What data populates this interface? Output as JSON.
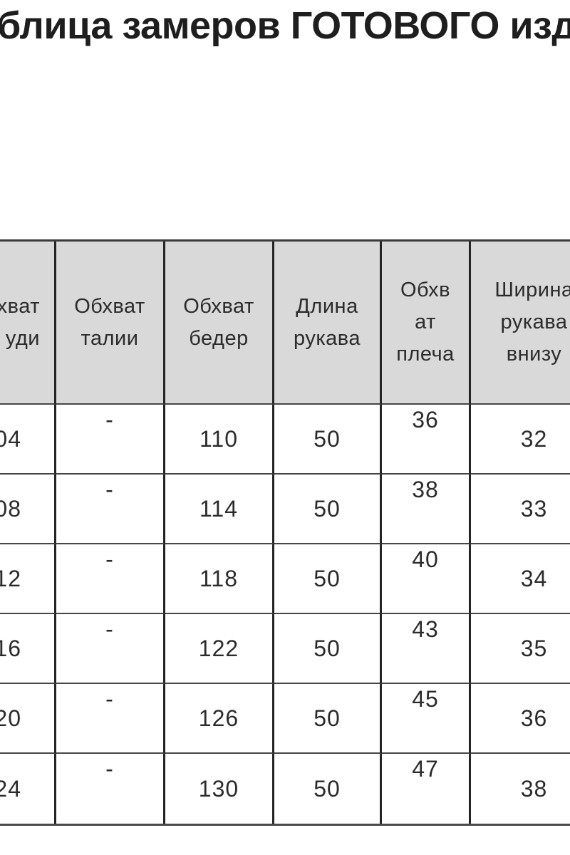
{
  "title": "блица замеров ГОТОВОГО изд",
  "table": {
    "headers": [
      "хват\nуди",
      "Обхват\nталии",
      "Обхват\nбедер",
      "Длина\nрукава",
      "Обхв\nат\nплеча",
      "Ширина\nрукава\nвнизу"
    ],
    "rows": [
      [
        "04",
        "-",
        "110",
        "50",
        "36",
        "32"
      ],
      [
        "08",
        "-",
        "114",
        "50",
        "38",
        "33"
      ],
      [
        "12",
        "-",
        "118",
        "50",
        "40",
        "34"
      ],
      [
        "16",
        "-",
        "122",
        "50",
        "43",
        "35"
      ],
      [
        "20",
        "-",
        "126",
        "50",
        "45",
        "36"
      ],
      [
        "24",
        "-",
        "130",
        "50",
        "47",
        "38"
      ]
    ]
  },
  "colors": {
    "header_background": "#d9d9d9",
    "vertical_border": "#242424",
    "horizontal_border": "#464646",
    "text": "#2b2b2b"
  }
}
